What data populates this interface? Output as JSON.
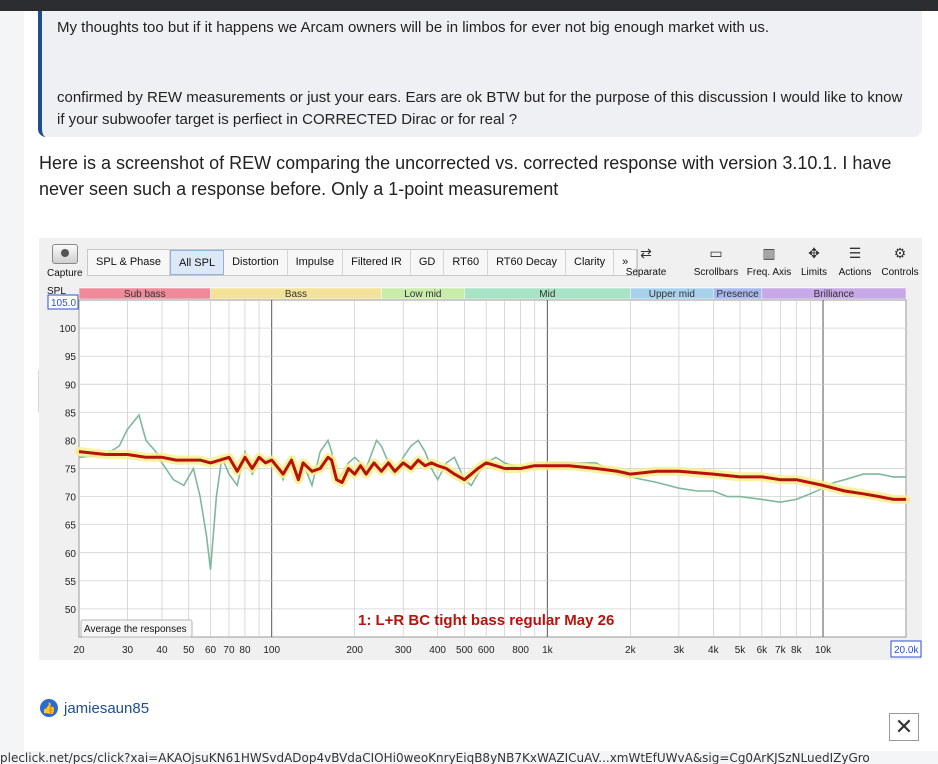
{
  "quote": {
    "line1": "My thoughts too but if it happens we Arcam owners will be in limbos for ever not big enough market with us.",
    "line2": "confirmed by REW measurements or just your ears. Ears are ok BTW but for the purpose of this discussion I would like to know if your subwoofer target is perfiect in CORRECTED Dirac or for real ?"
  },
  "paragraph": "Here is a screenshot of REW comparing the uncorrected vs. corrected response with version 3.10.1. I have never seen such a response before. Only a 1-point measurement",
  "rew": {
    "capture_label": "Capture",
    "tabs": [
      "SPL & Phase",
      "All SPL",
      "Distortion",
      "Impulse",
      "Filtered IR",
      "GD",
      "RT60",
      "RT60 Decay",
      "Clarity",
      "»"
    ],
    "active_tab": "All SPL",
    "tools": [
      "Separate",
      "Scrollbars",
      "Freq. Axis",
      "Limits",
      "Actions",
      "Controls"
    ],
    "bands": [
      {
        "label": "Sub bass",
        "color": "#f08a9a"
      },
      {
        "label": "Bass",
        "color": "#f3e39a"
      },
      {
        "label": "Low mid",
        "color": "#c9ecaa"
      },
      {
        "label": "Mid",
        "color": "#a9e3c6"
      },
      {
        "label": "Upper mid",
        "color": "#a8d2ec"
      },
      {
        "label": "Presence",
        "color": "#a8b8ec"
      },
      {
        "label": "Brilliance",
        "color": "#c6a9e6"
      }
    ],
    "spl_label": "SPL",
    "spl_max_box": "105.0",
    "freq_max_box": "20.0k",
    "average_button": "Average the responses",
    "trace_label": "1: L+R BC tight bass regular May 26"
  },
  "chart_data": {
    "type": "line",
    "title": "",
    "xlabel": "",
    "ylabel": "SPL",
    "x_scale": "log",
    "xlim": [
      20,
      20000
    ],
    "ylim": [
      45,
      105
    ],
    "y_ticks": [
      50,
      55,
      60,
      65,
      70,
      75,
      80,
      85,
      90,
      95,
      100
    ],
    "x_ticks": [
      {
        "v": 20,
        "label": "20"
      },
      {
        "v": 30,
        "label": "30"
      },
      {
        "v": 40,
        "label": "40"
      },
      {
        "v": 50,
        "label": "50"
      },
      {
        "v": 60,
        "label": "60"
      },
      {
        "v": 70,
        "label": "70"
      },
      {
        "v": 80,
        "label": "80"
      },
      {
        "v": 100,
        "label": "100"
      },
      {
        "v": 200,
        "label": "200"
      },
      {
        "v": 300,
        "label": "300"
      },
      {
        "v": 400,
        "label": "400"
      },
      {
        "v": 500,
        "label": "500"
      },
      {
        "v": 600,
        "label": "600"
      },
      {
        "v": 800,
        "label": "800"
      },
      {
        "v": 1000,
        "label": "1k"
      },
      {
        "v": 2000,
        "label": "2k"
      },
      {
        "v": 3000,
        "label": "3k"
      },
      {
        "v": 4000,
        "label": "4k"
      },
      {
        "v": 5000,
        "label": "5k"
      },
      {
        "v": 6000,
        "label": "6k"
      },
      {
        "v": 7000,
        "label": "7k"
      },
      {
        "v": 8000,
        "label": "8k"
      },
      {
        "v": 10000,
        "label": "10k"
      }
    ],
    "band_edges": [
      20,
      60,
      250,
      500,
      2000,
      4000,
      6000,
      20000
    ],
    "series": [
      {
        "color": "#7fb89c",
        "points": [
          [
            20,
            77
          ],
          [
            25,
            77.5
          ],
          [
            28,
            79
          ],
          [
            30,
            82
          ],
          [
            33,
            84.5
          ],
          [
            35,
            80
          ],
          [
            38,
            78
          ],
          [
            40,
            76
          ],
          [
            44,
            73
          ],
          [
            48,
            72
          ],
          [
            52,
            75
          ],
          [
            55,
            70
          ],
          [
            58,
            63
          ],
          [
            60,
            57
          ],
          [
            63,
            70
          ],
          [
            66,
            77
          ],
          [
            70,
            74
          ],
          [
            75,
            72
          ],
          [
            80,
            78
          ],
          [
            85,
            74
          ],
          [
            90,
            76
          ],
          [
            100,
            77
          ],
          [
            110,
            73
          ],
          [
            118,
            77
          ],
          [
            125,
            73
          ],
          [
            130,
            76
          ],
          [
            140,
            72
          ],
          [
            150,
            78
          ],
          [
            160,
            80
          ],
          [
            165,
            78
          ],
          [
            172,
            73
          ],
          [
            180,
            74
          ],
          [
            190,
            76
          ],
          [
            200,
            77
          ],
          [
            210,
            76
          ],
          [
            220,
            75
          ],
          [
            240,
            80
          ],
          [
            250,
            79
          ],
          [
            260,
            77
          ],
          [
            280,
            74
          ],
          [
            300,
            77
          ],
          [
            320,
            79
          ],
          [
            340,
            80
          ],
          [
            360,
            78
          ],
          [
            380,
            75
          ],
          [
            400,
            73
          ],
          [
            430,
            76
          ],
          [
            460,
            77
          ],
          [
            500,
            73
          ],
          [
            530,
            72
          ],
          [
            560,
            74
          ],
          [
            600,
            76
          ],
          [
            650,
            77
          ],
          [
            700,
            76
          ],
          [
            800,
            75
          ],
          [
            900,
            75
          ],
          [
            1000,
            76
          ],
          [
            1200,
            76
          ],
          [
            1500,
            76
          ],
          [
            1800,
            74
          ],
          [
            2000,
            73.5
          ],
          [
            2500,
            72.5
          ],
          [
            3000,
            71.5
          ],
          [
            3500,
            71
          ],
          [
            4000,
            71
          ],
          [
            4500,
            70
          ],
          [
            5000,
            70
          ],
          [
            6000,
            69.5
          ],
          [
            7000,
            69
          ],
          [
            8000,
            69.5
          ],
          [
            9000,
            70.5
          ],
          [
            10000,
            71.5
          ],
          [
            11000,
            72.5
          ],
          [
            12000,
            73
          ],
          [
            14000,
            74
          ],
          [
            16000,
            74
          ],
          [
            18000,
            73.5
          ],
          [
            20000,
            73.5
          ]
        ]
      },
      {
        "color": "#b8120c",
        "points": [
          [
            20,
            78
          ],
          [
            25,
            77.5
          ],
          [
            30,
            77.5
          ],
          [
            35,
            77
          ],
          [
            40,
            77
          ],
          [
            45,
            76.5
          ],
          [
            50,
            76.5
          ],
          [
            55,
            76.5
          ],
          [
            60,
            76
          ],
          [
            65,
            76.5
          ],
          [
            70,
            77
          ],
          [
            75,
            74.5
          ],
          [
            80,
            77
          ],
          [
            85,
            75
          ],
          [
            90,
            77
          ],
          [
            95,
            76
          ],
          [
            100,
            76.5
          ],
          [
            110,
            74
          ],
          [
            118,
            76.5
          ],
          [
            125,
            73
          ],
          [
            130,
            76
          ],
          [
            140,
            74.5
          ],
          [
            150,
            75
          ],
          [
            160,
            77
          ],
          [
            165,
            76.5
          ],
          [
            172,
            73
          ],
          [
            180,
            72.5
          ],
          [
            190,
            75
          ],
          [
            200,
            74
          ],
          [
            210,
            75.5
          ],
          [
            220,
            74
          ],
          [
            235,
            76
          ],
          [
            250,
            74.5
          ],
          [
            265,
            76
          ],
          [
            280,
            74.5
          ],
          [
            300,
            76
          ],
          [
            320,
            75
          ],
          [
            340,
            76.5
          ],
          [
            360,
            75.5
          ],
          [
            380,
            76
          ],
          [
            400,
            75.5
          ],
          [
            430,
            75
          ],
          [
            460,
            74
          ],
          [
            500,
            73
          ],
          [
            530,
            74
          ],
          [
            560,
            75
          ],
          [
            600,
            76
          ],
          [
            650,
            75.5
          ],
          [
            700,
            75
          ],
          [
            800,
            75
          ],
          [
            900,
            75.5
          ],
          [
            1000,
            75.5
          ],
          [
            1200,
            75.5
          ],
          [
            1500,
            75
          ],
          [
            1800,
            74.5
          ],
          [
            2000,
            74
          ],
          [
            2500,
            74.5
          ],
          [
            3000,
            74.5
          ],
          [
            4000,
            74
          ],
          [
            5000,
            73.5
          ],
          [
            6000,
            73.5
          ],
          [
            7000,
            73
          ],
          [
            8000,
            73
          ],
          [
            10000,
            72
          ],
          [
            12000,
            71
          ],
          [
            14000,
            70.5
          ],
          [
            16000,
            70
          ],
          [
            18000,
            69.5
          ],
          [
            20000,
            69.5
          ]
        ]
      }
    ]
  },
  "author": "jamiesaun85",
  "close_glyph": "✕",
  "url_text": "pleclick.net/pcs/click?xai=AKAOjsuKN61HWSvdADop4vBVdaCIOHi0weoKnryEiqB8yNB7KxWAZICuAV...xmWtEfUWvA&sig=Cg0ArKJSzNLuedIZyGro"
}
